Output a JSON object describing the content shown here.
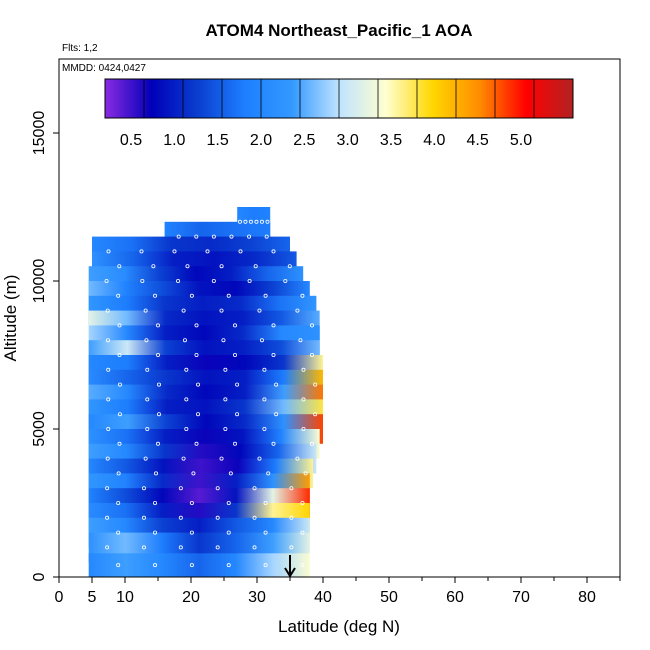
{
  "chart_data": {
    "type": "heatmap",
    "title": "ATOM4 Northeast_Pacific_1 AOA",
    "subtitle_flights": "Flts: 1,2",
    "subtitle_dates": "MMDD: 0424,0427",
    "xlabel": "Latitude (deg N)",
    "ylabel": "Altitude (m)",
    "xlim": [
      0,
      85
    ],
    "ylim": [
      0,
      17500
    ],
    "x_ticks": [
      0,
      5,
      10,
      20,
      30,
      40,
      50,
      60,
      70,
      80
    ],
    "y_ticks": [
      0,
      5000,
      10000,
      15000
    ],
    "colorbar": {
      "range": [
        0.2,
        5.6
      ],
      "ticks": [
        0.5,
        1.0,
        1.5,
        2.0,
        2.5,
        3.0,
        3.5,
        4.0,
        4.5,
        5.0
      ],
      "tick_labels": [
        "0.5",
        "1.0",
        "1.5",
        "2.0",
        "2.5",
        "3.0",
        "3.5",
        "4.0",
        "4.5",
        "5.0"
      ],
      "colors": [
        "#8a2be2",
        "#0000b8",
        "#0a3fd0",
        "#1e7fff",
        "#3399ff",
        "#bfe3ff",
        "#ffffd0",
        "#ffd700",
        "#ff8c00",
        "#ff0000",
        "#b22222"
      ]
    },
    "altitude_bands": [
      {
        "alt_bottom": 11500,
        "alt_top": 12500,
        "lat_start": 27,
        "lat_end": 32,
        "values": [
          2.0,
          1.8,
          1.9
        ]
      },
      {
        "alt_bottom": 11000,
        "alt_top": 12000,
        "lat_start": 16,
        "lat_end": 32,
        "values": [
          1.9,
          1.6,
          1.7,
          1.8
        ]
      },
      {
        "alt_bottom": 10500,
        "alt_top": 11500,
        "lat_start": 5,
        "lat_end": 35,
        "values": [
          2.0,
          1.7,
          1.2,
          1.1,
          1.3,
          1.6
        ]
      },
      {
        "alt_bottom": 10000,
        "alt_top": 11000,
        "lat_start": 5,
        "lat_end": 36,
        "values": [
          2.2,
          1.6,
          1.0,
          0.9,
          1.1,
          1.5
        ]
      },
      {
        "alt_bottom": 9500,
        "alt_top": 10500,
        "lat_start": 4.5,
        "lat_end": 37,
        "values": [
          2.4,
          2.1,
          1.3,
          0.8,
          1.0,
          1.6,
          2.2
        ]
      },
      {
        "alt_bottom": 9000,
        "alt_top": 10000,
        "lat_start": 4.5,
        "lat_end": 38,
        "values": [
          2.6,
          1.9,
          1.4,
          0.9,
          0.8,
          1.3,
          2.0
        ]
      },
      {
        "alt_bottom": 8500,
        "alt_top": 9500,
        "lat_start": 4.5,
        "lat_end": 39,
        "values": [
          2.3,
          1.8,
          1.2,
          1.0,
          1.1,
          1.7,
          2.3
        ]
      },
      {
        "alt_bottom": 8000,
        "alt_top": 9000,
        "lat_start": 4.5,
        "lat_end": 39.5,
        "values": [
          3.2,
          2.6,
          1.1,
          0.9,
          1.0,
          1.5,
          2.5
        ]
      },
      {
        "alt_bottom": 7500,
        "alt_top": 8500,
        "lat_start": 4.5,
        "lat_end": 39.5,
        "values": [
          2.8,
          2.0,
          1.0,
          0.8,
          1.1,
          2.0,
          2.2
        ]
      },
      {
        "alt_bottom": 7000,
        "alt_top": 8000,
        "lat_start": 4.5,
        "lat_end": 39.5,
        "values": [
          2.4,
          3.0,
          1.3,
          0.9,
          1.0,
          1.4,
          2.6
        ]
      },
      {
        "alt_bottom": 6500,
        "alt_top": 7500,
        "lat_start": 4.5,
        "lat_end": 40,
        "values": [
          2.0,
          1.8,
          1.0,
          0.7,
          0.8,
          1.2,
          3.6
        ]
      },
      {
        "alt_bottom": 6000,
        "alt_top": 7000,
        "lat_start": 4.5,
        "lat_end": 40,
        "values": [
          2.1,
          1.6,
          1.2,
          0.9,
          1.0,
          1.8,
          4.2
        ]
      },
      {
        "alt_bottom": 5500,
        "alt_top": 6500,
        "lat_start": 4.5,
        "lat_end": 40,
        "values": [
          2.5,
          2.0,
          1.1,
          0.8,
          1.0,
          2.4,
          4.6
        ]
      },
      {
        "alt_bottom": 5000,
        "alt_top": 6000,
        "lat_start": 4.5,
        "lat_end": 40,
        "values": [
          2.3,
          1.8,
          1.0,
          0.9,
          1.2,
          2.6,
          3.8
        ]
      },
      {
        "alt_bottom": 4500,
        "alt_top": 5500,
        "lat_start": 4.5,
        "lat_end": 40,
        "values": [
          2.0,
          2.4,
          1.3,
          0.8,
          1.1,
          2.2,
          4.8
        ]
      },
      {
        "alt_bottom": 4000,
        "alt_top": 5000,
        "lat_start": 4.5,
        "lat_end": 39.5,
        "values": [
          2.2,
          1.7,
          1.0,
          0.7,
          0.9,
          1.9,
          3.4
        ]
      },
      {
        "alt_bottom": 3500,
        "alt_top": 4500,
        "lat_start": 4.5,
        "lat_end": 39,
        "values": [
          2.4,
          2.0,
          1.2,
          0.6,
          0.8,
          1.6,
          3.0
        ]
      },
      {
        "alt_bottom": 3000,
        "alt_top": 4000,
        "lat_start": 4.5,
        "lat_end": 38.5,
        "values": [
          2.0,
          1.5,
          0.9,
          0.5,
          0.7,
          1.8,
          3.6
        ]
      },
      {
        "alt_bottom": 2500,
        "alt_top": 3500,
        "lat_start": 4.5,
        "lat_end": 38,
        "values": [
          2.3,
          1.9,
          1.1,
          0.5,
          1.0,
          2.2,
          4.4
        ]
      },
      {
        "alt_bottom": 2000,
        "alt_top": 3000,
        "lat_start": 4.5,
        "lat_end": 38,
        "values": [
          1.9,
          1.4,
          0.8,
          0.4,
          0.9,
          3.2,
          4.9
        ]
      },
      {
        "alt_bottom": 1500,
        "alt_top": 2500,
        "lat_start": 4.5,
        "lat_end": 38,
        "values": [
          2.1,
          1.7,
          1.0,
          0.6,
          1.2,
          3.6,
          4.0
        ]
      },
      {
        "alt_bottom": 1000,
        "alt_top": 2000,
        "lat_start": 4.5,
        "lat_end": 38,
        "values": [
          2.4,
          2.0,
          1.3,
          1.0,
          1.5,
          2.0,
          3.0
        ]
      },
      {
        "alt_bottom": 500,
        "alt_top": 1500,
        "lat_start": 4.5,
        "lat_end": 38,
        "values": [
          2.2,
          2.6,
          1.8,
          1.2,
          1.6,
          2.4,
          3.2
        ]
      },
      {
        "alt_bottom": 0,
        "alt_top": 800,
        "lat_start": 4.5,
        "lat_end": 38,
        "values": [
          2.0,
          2.4,
          2.0,
          1.6,
          2.0,
          2.8,
          3.4
        ]
      }
    ],
    "arrow_marker_lat": 35,
    "grid": false,
    "legend": "colorbar-top"
  }
}
